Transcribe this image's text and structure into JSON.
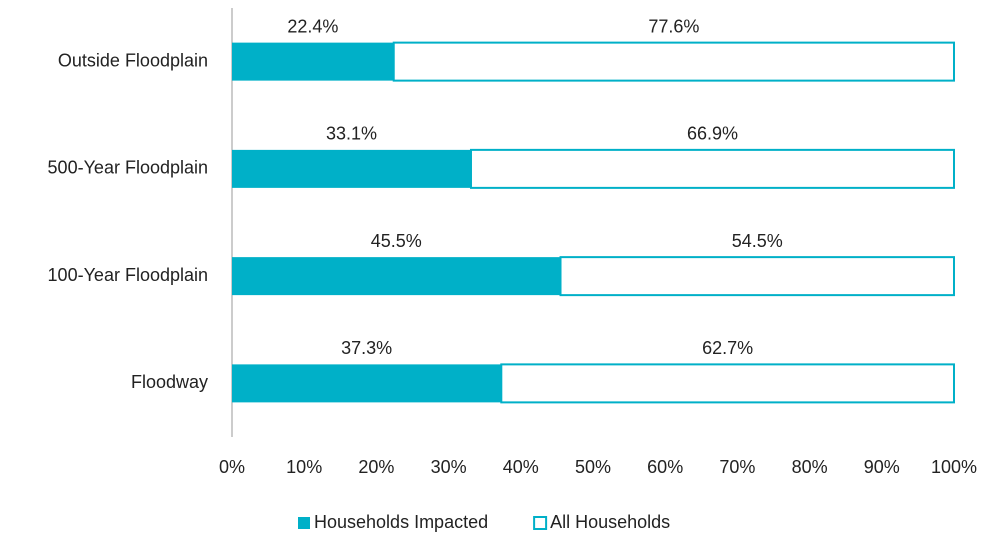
{
  "chart_data": {
    "type": "bar",
    "orientation": "horizontal",
    "stacked": true,
    "categories": [
      "Outside Floodplain",
      "500-Year Floodplain",
      "100-Year Floodplain",
      "Floodway"
    ],
    "series": [
      {
        "name": "Households Impacted",
        "color": "#00b0c8",
        "fill": "solid",
        "values": [
          22.4,
          33.1,
          45.5,
          37.3
        ],
        "value_labels": [
          "22.4%",
          "33.1%",
          "45.5%",
          "37.3%"
        ]
      },
      {
        "name": "All Households",
        "color": "#00b0c8",
        "fill": "hollow",
        "values": [
          77.6,
          66.9,
          54.5,
          62.7
        ],
        "value_labels": [
          "77.6%",
          "66.9%",
          "54.5%",
          "62.7%"
        ]
      }
    ],
    "xlim": [
      0,
      100
    ],
    "xticks": [
      {
        "value": 0,
        "label": "0%"
      },
      {
        "value": 10,
        "label": "10%"
      },
      {
        "value": 20,
        "label": "20%"
      },
      {
        "value": 30,
        "label": "30%"
      },
      {
        "value": 40,
        "label": "40%"
      },
      {
        "value": 50,
        "label": "50%"
      },
      {
        "value": 60,
        "label": "60%"
      },
      {
        "value": 70,
        "label": "70%"
      },
      {
        "value": 80,
        "label": "80%"
      },
      {
        "value": 90,
        "label": "90%"
      },
      {
        "value": 100,
        "label": "100%"
      }
    ],
    "grid": false,
    "legend": "bottom"
  }
}
